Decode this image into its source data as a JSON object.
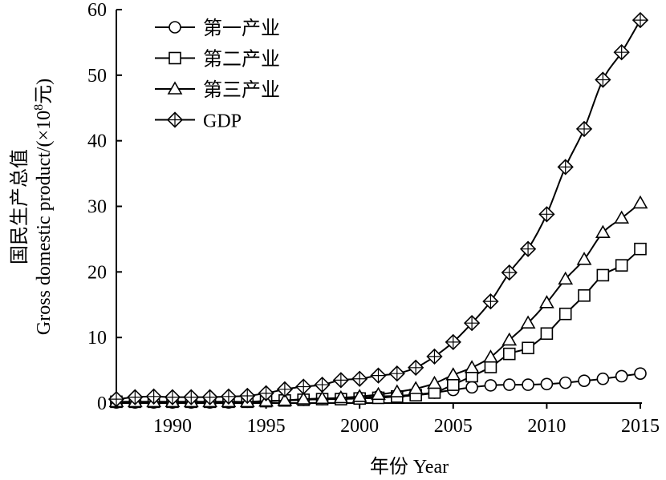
{
  "chart_data": {
    "type": "line",
    "xlabel": "年份 Year",
    "ylabel_line1": "国民生产总值",
    "ylabel_line2_prefix": "Gross domestic product/(×10",
    "ylabel_line2_sup": "8",
    "ylabel_line2_suffix": "元)",
    "xlim": [
      1987,
      2015
    ],
    "ylim": [
      0,
      60
    ],
    "x_ticks": [
      1990,
      1995,
      2000,
      2005,
      2010,
      2015
    ],
    "y_ticks": [
      0,
      10,
      20,
      30,
      40,
      50,
      60
    ],
    "legend_position": "top-left",
    "grid": false,
    "x": [
      1987,
      1988,
      1989,
      1990,
      1991,
      1992,
      1993,
      1994,
      1995,
      1996,
      1997,
      1998,
      1999,
      2000,
      2001,
      2002,
      2003,
      2004,
      2005,
      2006,
      2007,
      2008,
      2009,
      2010,
      2011,
      2012,
      2013,
      2014,
      2015
    ],
    "series": [
      {
        "name": "第一产业",
        "marker": "circle",
        "values": [
          0.1,
          0.1,
          0.1,
          0.1,
          0.1,
          0.1,
          0.1,
          0.2,
          0.3,
          0.4,
          0.5,
          0.6,
          0.7,
          0.8,
          1.0,
          1.1,
          1.3,
          1.6,
          2.0,
          2.4,
          2.7,
          2.8,
          2.8,
          2.9,
          3.1,
          3.4,
          3.7,
          4.1,
          4.5
        ]
      },
      {
        "name": "第二产业",
        "marker": "square",
        "values": [
          0.2,
          0.2,
          0.2,
          0.2,
          0.2,
          0.2,
          0.2,
          0.2,
          0.3,
          0.4,
          0.5,
          0.6,
          0.6,
          0.7,
          0.8,
          1.0,
          1.2,
          1.6,
          2.8,
          4.1,
          5.5,
          7.5,
          8.4,
          10.6,
          13.6,
          16.4,
          19.5,
          21.0,
          23.5
        ]
      },
      {
        "name": "第三产业",
        "marker": "triangle",
        "values": [
          0.2,
          0.2,
          0.2,
          0.2,
          0.2,
          0.2,
          0.2,
          0.2,
          0.3,
          0.4,
          0.6,
          0.7,
          0.8,
          1.0,
          1.3,
          1.7,
          2.2,
          3.0,
          4.3,
          5.4,
          7.0,
          9.6,
          12.2,
          15.3,
          18.9,
          21.9,
          26.0,
          28.2,
          30.5
        ]
      },
      {
        "name": "GDP",
        "marker": "diamond",
        "values": [
          0.6,
          0.9,
          1.0,
          0.9,
          0.9,
          0.9,
          1.0,
          1.1,
          1.5,
          2.1,
          2.5,
          2.8,
          3.5,
          3.7,
          4.2,
          4.5,
          5.4,
          7.1,
          9.3,
          12.2,
          15.5,
          19.9,
          23.5,
          28.8,
          36.0,
          41.8,
          49.3,
          53.5,
          58.4
        ]
      }
    ]
  }
}
